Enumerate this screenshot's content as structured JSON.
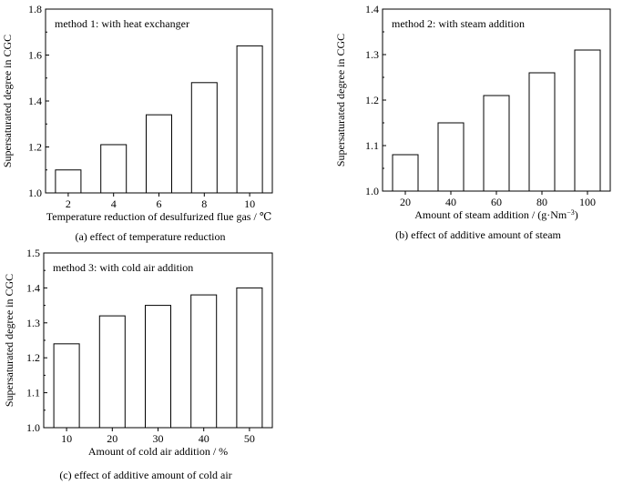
{
  "chart_data": [
    {
      "type": "bar",
      "annotation": "method 1: with heat exchanger",
      "categories": [
        "2",
        "4",
        "6",
        "8",
        "10"
      ],
      "values": [
        1.1,
        1.21,
        1.34,
        1.48,
        1.64
      ],
      "xlabel": "Temperature reduction of desulfurized flue gas / ℃",
      "ylabel": "Supersaturated degree in CGC",
      "ylim": [
        1.0,
        1.8
      ],
      "yticks": [
        "1.0",
        "1.2",
        "1.4",
        "1.6",
        "1.8"
      ],
      "caption": "(a) effect of temperature reduction",
      "grid": false
    },
    {
      "type": "bar",
      "annotation": "method 2: with steam addition",
      "categories": [
        "20",
        "40",
        "60",
        "80",
        "100"
      ],
      "values": [
        1.08,
        1.15,
        1.21,
        1.26,
        1.31
      ],
      "xlabel": "Amount of steam addition / (g·Nm",
      "xlabel_sup": "−3",
      "xlabel_tail": ")",
      "ylabel": "Supersaturated degree in CGC",
      "ylim": [
        1.0,
        1.4
      ],
      "yticks": [
        "1.0",
        "1.1",
        "1.2",
        "1.3",
        "1.4"
      ],
      "caption": "(b) effect of additive amount of steam",
      "grid": false
    },
    {
      "type": "bar",
      "annotation": "method 3: with cold air addition",
      "categories": [
        "10",
        "20",
        "30",
        "40",
        "50"
      ],
      "values": [
        1.24,
        1.32,
        1.35,
        1.38,
        1.4
      ],
      "xlabel": "Amount of cold air addition / %",
      "ylabel": "Supersaturated degree in CGC",
      "ylim": [
        1.0,
        1.5
      ],
      "yticks": [
        "1.0",
        "1.1",
        "1.2",
        "1.3",
        "1.4",
        "1.5"
      ],
      "caption": "(c) effect of additive amount of cold air",
      "grid": false
    }
  ]
}
